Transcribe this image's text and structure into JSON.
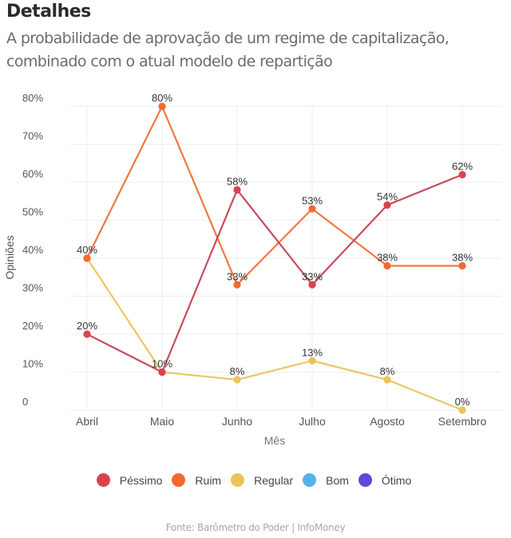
{
  "header": {
    "title": "Detalhes",
    "subtitle": "A probabilidade de aprovação de um regime de capitalização, combinado com o atual modelo de repartição"
  },
  "source": "Fonte: Barômetro do Poder | InfoMoney",
  "chart_data": {
    "type": "line",
    "title": "Detalhes",
    "subtitle": "A probabilidade de aprovação de um regime de capitalização, combinado com o atual modelo de repartição",
    "xlabel": "Mês",
    "ylabel": "Opiniões",
    "categories": [
      "Abril",
      "Maio",
      "Junho",
      "Julho",
      "Agosto",
      "Setembro"
    ],
    "ylim": [
      0,
      80
    ],
    "yticks": [
      0,
      10,
      20,
      30,
      40,
      50,
      60,
      70,
      80
    ],
    "ytick_labels": [
      "0",
      "10%",
      "20%",
      "30%",
      "40%",
      "50%",
      "60%",
      "70%",
      "80%"
    ],
    "grid": true,
    "legend_position": "bottom",
    "series": [
      {
        "name": "Péssimo",
        "color": "#d9434f",
        "line_color": "#c94a5e",
        "values": [
          20,
          10,
          58,
          33,
          54,
          62
        ],
        "labels": [
          "20%",
          "",
          "58%",
          "33%",
          "54%",
          "62%"
        ]
      },
      {
        "name": "Ruim",
        "color": "#f26a2e",
        "line_color": "#f07840",
        "values": [
          40,
          80,
          33,
          53,
          38,
          38
        ],
        "labels": [
          "",
          "80%",
          "33%",
          "53%",
          "38%",
          "38%"
        ]
      },
      {
        "name": "Regular",
        "color": "#ecc35a",
        "line_color": "#ecc866",
        "values": [
          40,
          10,
          8,
          13,
          8,
          0
        ],
        "labels": [
          "40%",
          "10%",
          "8%",
          "13%",
          "8%",
          "0%"
        ]
      },
      {
        "name": "Bom",
        "color": "#54b3e8",
        "values": []
      },
      {
        "name": "Ótimo",
        "color": "#6446d8",
        "values": []
      }
    ]
  }
}
